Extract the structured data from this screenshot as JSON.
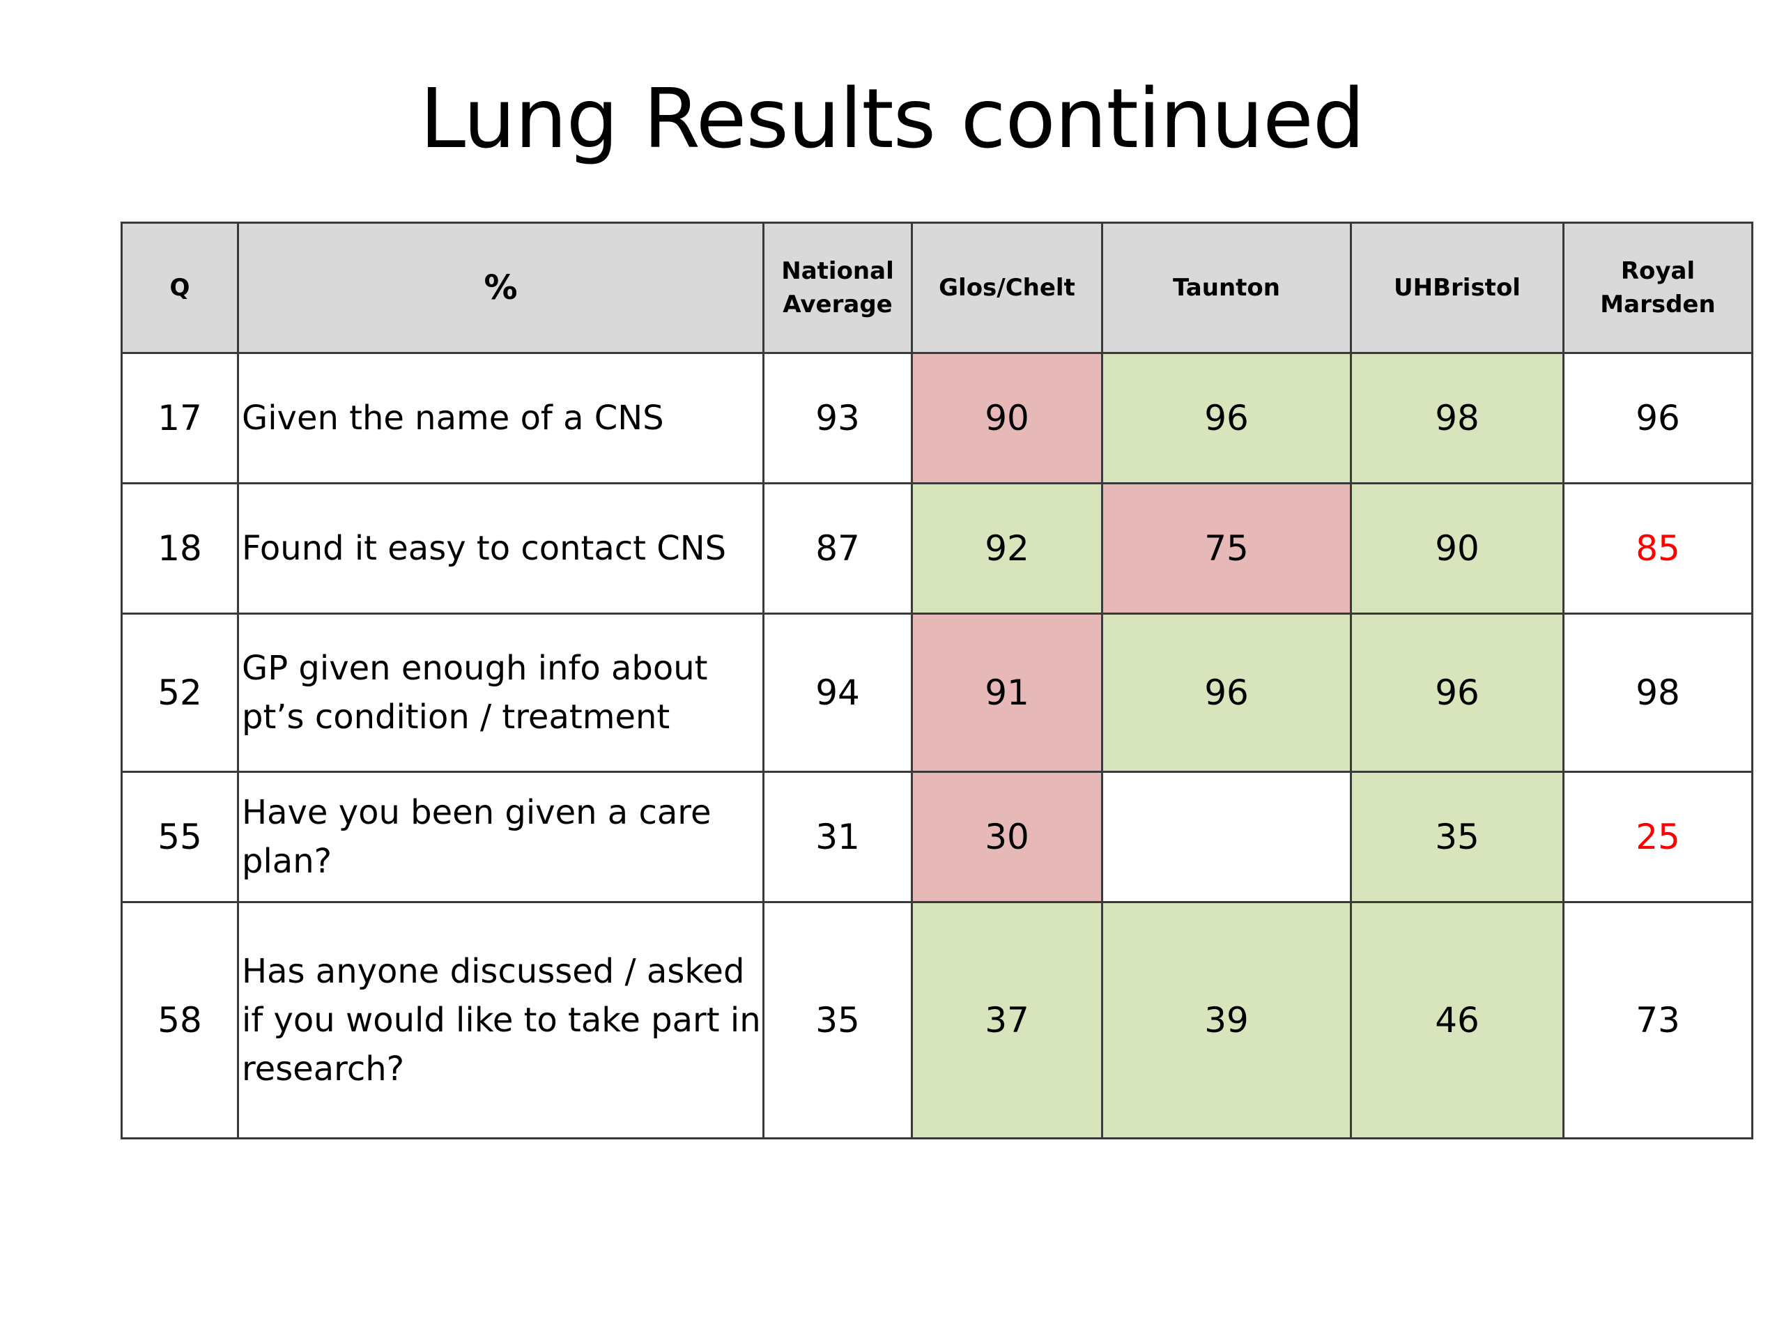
{
  "title": "Lung Results continued",
  "table": {
    "headers": {
      "q": "Q",
      "pct": "%",
      "national_average": "National Average",
      "glos_chelt": "Glos/Chelt",
      "taunton": "Taunton",
      "uhbristol": "UHBristol",
      "royal_marsden": "Royal Marsden"
    },
    "rows": [
      {
        "q": "17",
        "question": "Given the name of a CNS",
        "national_average": "93",
        "glos_chelt": "90",
        "taunton": "96",
        "uhbristol": "98",
        "royal_marsden": "96"
      },
      {
        "q": "18",
        "question": "Found it easy to contact CNS",
        "national_average": "87",
        "glos_chelt": "92",
        "taunton": "75",
        "uhbristol": "90",
        "royal_marsden": "85"
      },
      {
        "q": "52",
        "question": "GP given enough info about pt’s condition / treatment",
        "national_average": "94",
        "glos_chelt": "91",
        "taunton": "96",
        "uhbristol": "96",
        "royal_marsden": "98"
      },
      {
        "q": "55",
        "question": "Have you been given a care plan?",
        "national_average": "31",
        "glos_chelt": "30",
        "taunton": "",
        "uhbristol": "35",
        "royal_marsden": "25"
      },
      {
        "q": "58",
        "question": "Has anyone discussed /  asked if you would like to take part in research?",
        "national_average": "35",
        "glos_chelt": "37",
        "taunton": "39",
        "uhbristol": "46",
        "royal_marsden": "73"
      }
    ]
  },
  "colors": {
    "header_bg": "#d9d9d9",
    "below_average_fill": "#e6b8b7",
    "above_average_fill": "#d8e4bc",
    "below_average_text": "#ff0000",
    "border": "#3a3a3a"
  }
}
